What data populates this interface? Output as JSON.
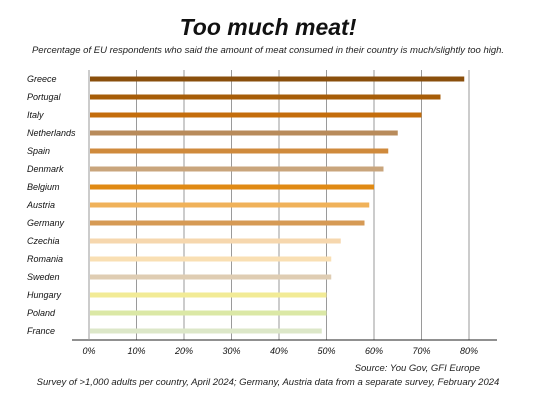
{
  "chart_data": {
    "type": "bar",
    "orientation": "horizontal",
    "title": "Too much meat!",
    "subtitle": "Percentage of EU respondents who said the amount of meat consumed in their country is much/slightly too high.",
    "categories": [
      "Greece",
      "Portugal",
      "Italy",
      "Netherlands",
      "Spain",
      "Denmark",
      "Belgium",
      "Austria",
      "Germany",
      "Czechia",
      "Romania",
      "Sweden",
      "Hungary",
      "Poland",
      "France"
    ],
    "values": [
      79,
      74,
      70,
      65,
      63,
      62,
      60,
      59,
      58,
      53,
      51,
      51,
      50,
      50,
      49
    ],
    "colors": [
      "#8a4f0c",
      "#a75d08",
      "#c46d0c",
      "#b88b5b",
      "#cf8a3c",
      "#c9a57c",
      "#e08a14",
      "#f0b25a",
      "#d69a55",
      "#f6d7ae",
      "#f9dfb3",
      "#dfcdb3",
      "#f2eb96",
      "#dbe8a6",
      "#dce7c8"
    ],
    "xlim": [
      0,
      80
    ],
    "x_ticks": [
      "0%",
      "10%",
      "20%",
      "30%",
      "40%",
      "50%",
      "60%",
      "70%",
      "80%"
    ],
    "grid": true,
    "xlabel": "",
    "ylabel": ""
  },
  "source": "Source: You Gov, GFI Europe",
  "note": "Survey of >1,000 adults per country, April 2024; Germany, Austria data from a separate survey, February 2024"
}
